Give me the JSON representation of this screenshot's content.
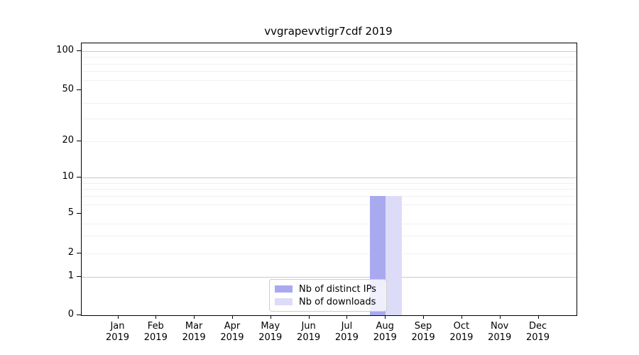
{
  "title": "vvgrapevvtigr7cdf 2019",
  "chart_data": {
    "type": "bar",
    "title": "vvgrapevvtigr7cdf 2019",
    "categories": [
      "Jan",
      "Feb",
      "Mar",
      "Apr",
      "May",
      "Jun",
      "Jul",
      "Aug",
      "Sep",
      "Oct",
      "Nov",
      "Dec"
    ],
    "x_year_label": "2019",
    "series": [
      {
        "name": "Nb of distinct IPs",
        "color": "#a9a9ef",
        "values": [
          0,
          0,
          0,
          0,
          0,
          0,
          0,
          7,
          0,
          0,
          0,
          0
        ]
      },
      {
        "name": "Nb of downloads",
        "color": "#dcdcf8",
        "values": [
          0,
          0,
          0,
          0,
          0,
          0,
          0,
          7,
          0,
          0,
          0,
          0
        ]
      }
    ],
    "yscale": "symlog",
    "y_tick_labels": [
      0,
      1,
      2,
      5,
      10,
      20,
      50,
      100
    ],
    "y_gridlines": {
      "strong": [
        1,
        10,
        100
      ],
      "minor": [
        2,
        3,
        4,
        6,
        7,
        8,
        9,
        20,
        30,
        40,
        60,
        70,
        80,
        90
      ]
    },
    "ylim": [
      0,
      110
    ],
    "grid": true,
    "legend_position": "lower center",
    "colors": {
      "axis": "#000000",
      "grid_strong": "#c9c9c9",
      "grid_minor": "#f0f0f2"
    }
  }
}
